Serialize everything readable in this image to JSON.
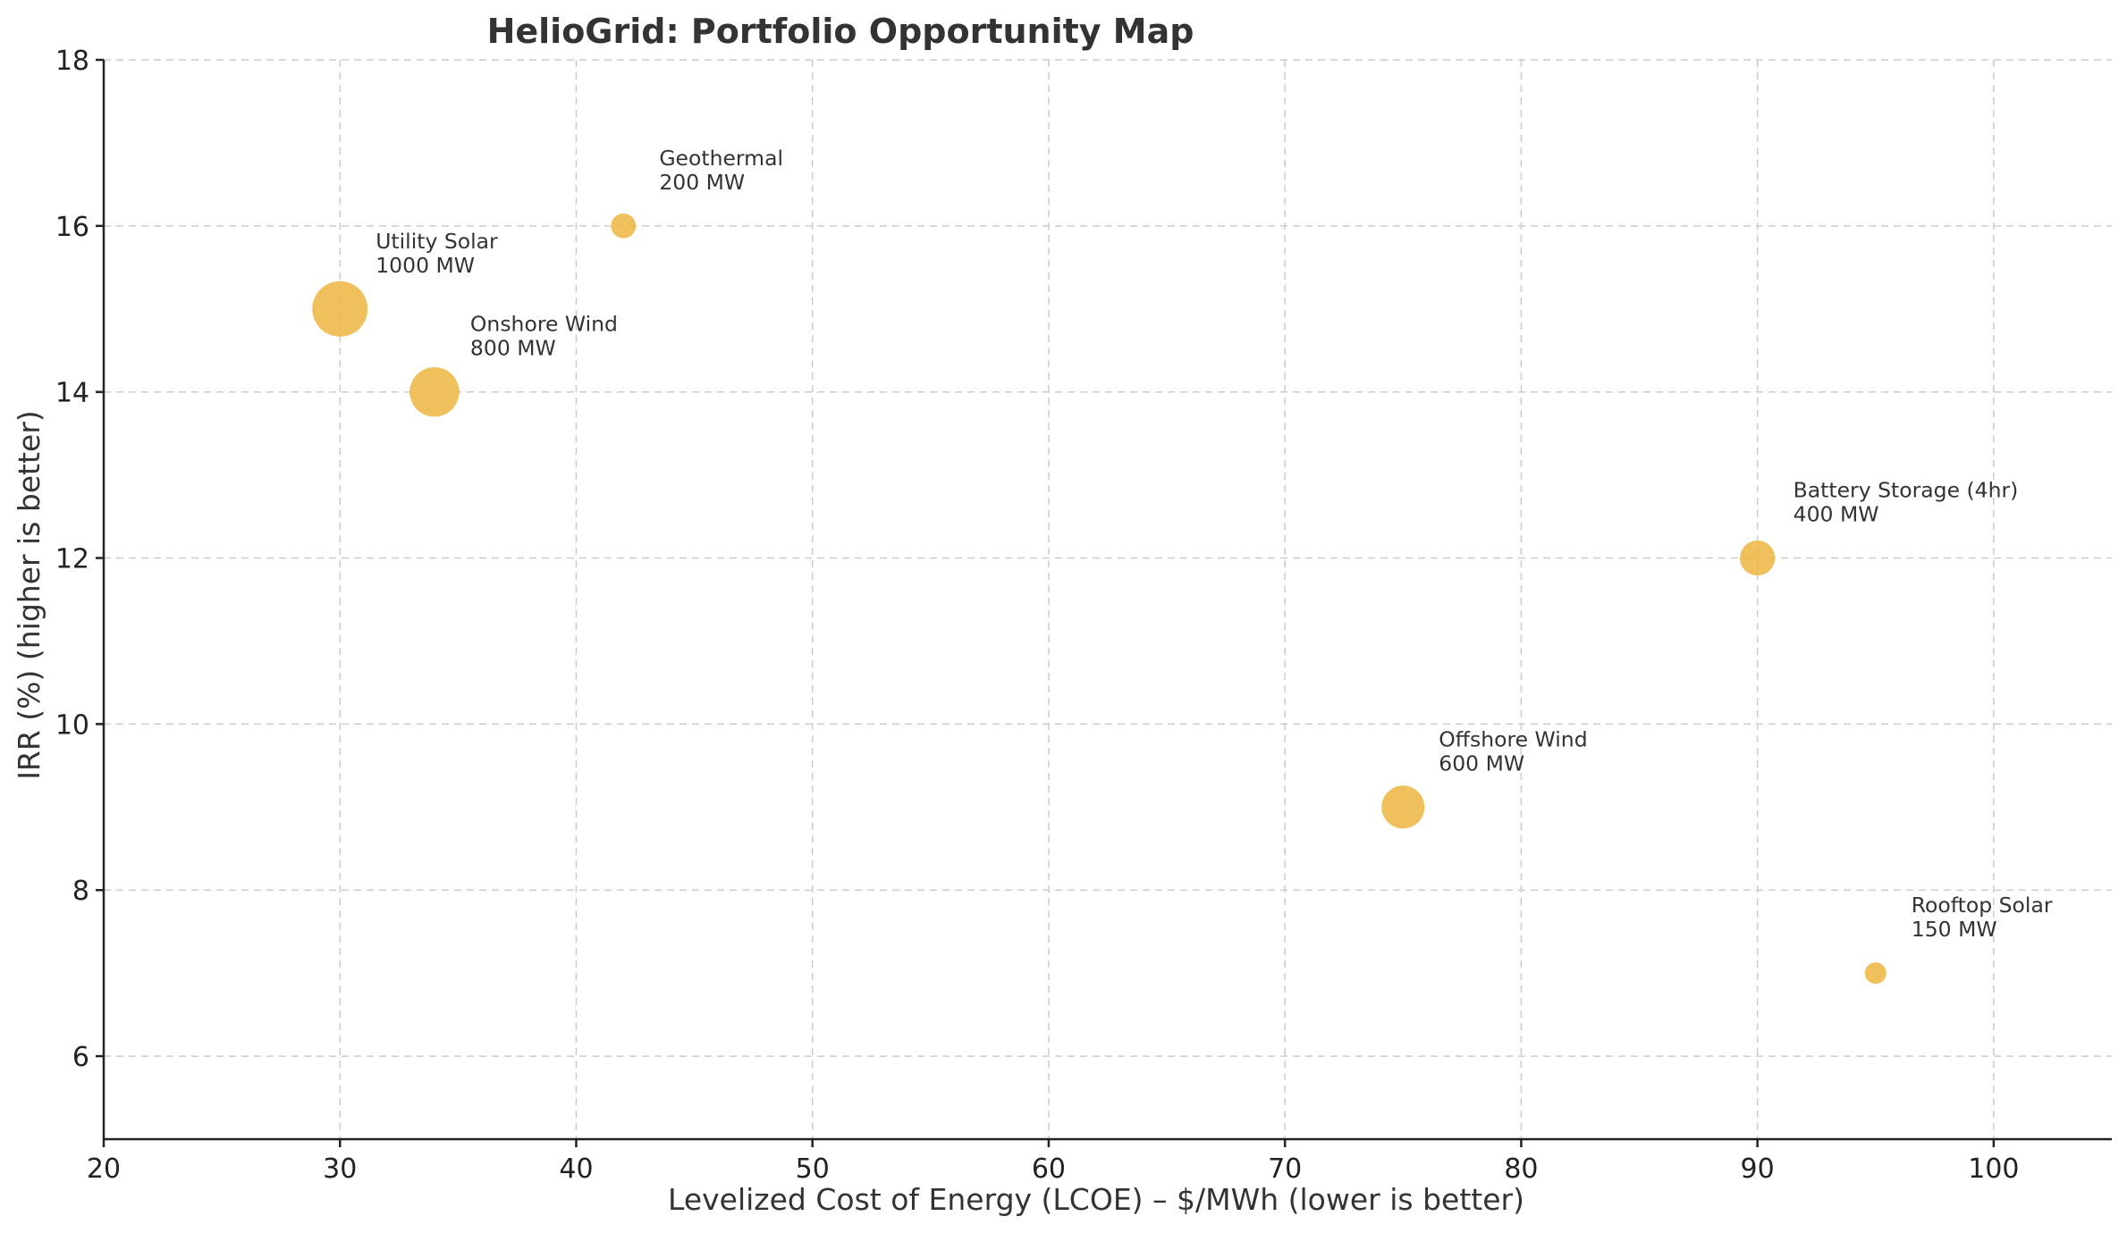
{
  "chart_data": {
    "type": "scatter",
    "title": "HelioGrid: Portfolio Opportunity Map",
    "xlabel": "Levelized Cost of Energy (LCOE) – $/MWh (lower is better)",
    "ylabel": "IRR (%) (higher is better)",
    "xlim": [
      20,
      105
    ],
    "ylim": [
      5,
      18
    ],
    "xticks": [
      20,
      30,
      40,
      50,
      60,
      70,
      80,
      90,
      100
    ],
    "yticks": [
      6,
      8,
      10,
      12,
      14,
      16,
      18
    ],
    "grid": true,
    "marker_color": "#EDB540",
    "size_field": "Capacity (MW)",
    "points": [
      {
        "name": "Utility Solar",
        "x": 30,
        "y": 15,
        "size": 1000,
        "label": "1000 MW"
      },
      {
        "name": "Onshore Wind",
        "x": 34,
        "y": 14,
        "size": 800,
        "label": "800 MW"
      },
      {
        "name": "Geothermal",
        "x": 42,
        "y": 16,
        "size": 200,
        "label": "200 MW"
      },
      {
        "name": "Battery Storage (4hr)",
        "x": 90,
        "y": 12,
        "size": 400,
        "label": "400 MW"
      },
      {
        "name": "Offshore Wind",
        "x": 75,
        "y": 9,
        "size": 600,
        "label": "600 MW"
      },
      {
        "name": "Rooftop Solar",
        "x": 95,
        "y": 7,
        "size": 150,
        "label": "150 MW"
      }
    ]
  }
}
